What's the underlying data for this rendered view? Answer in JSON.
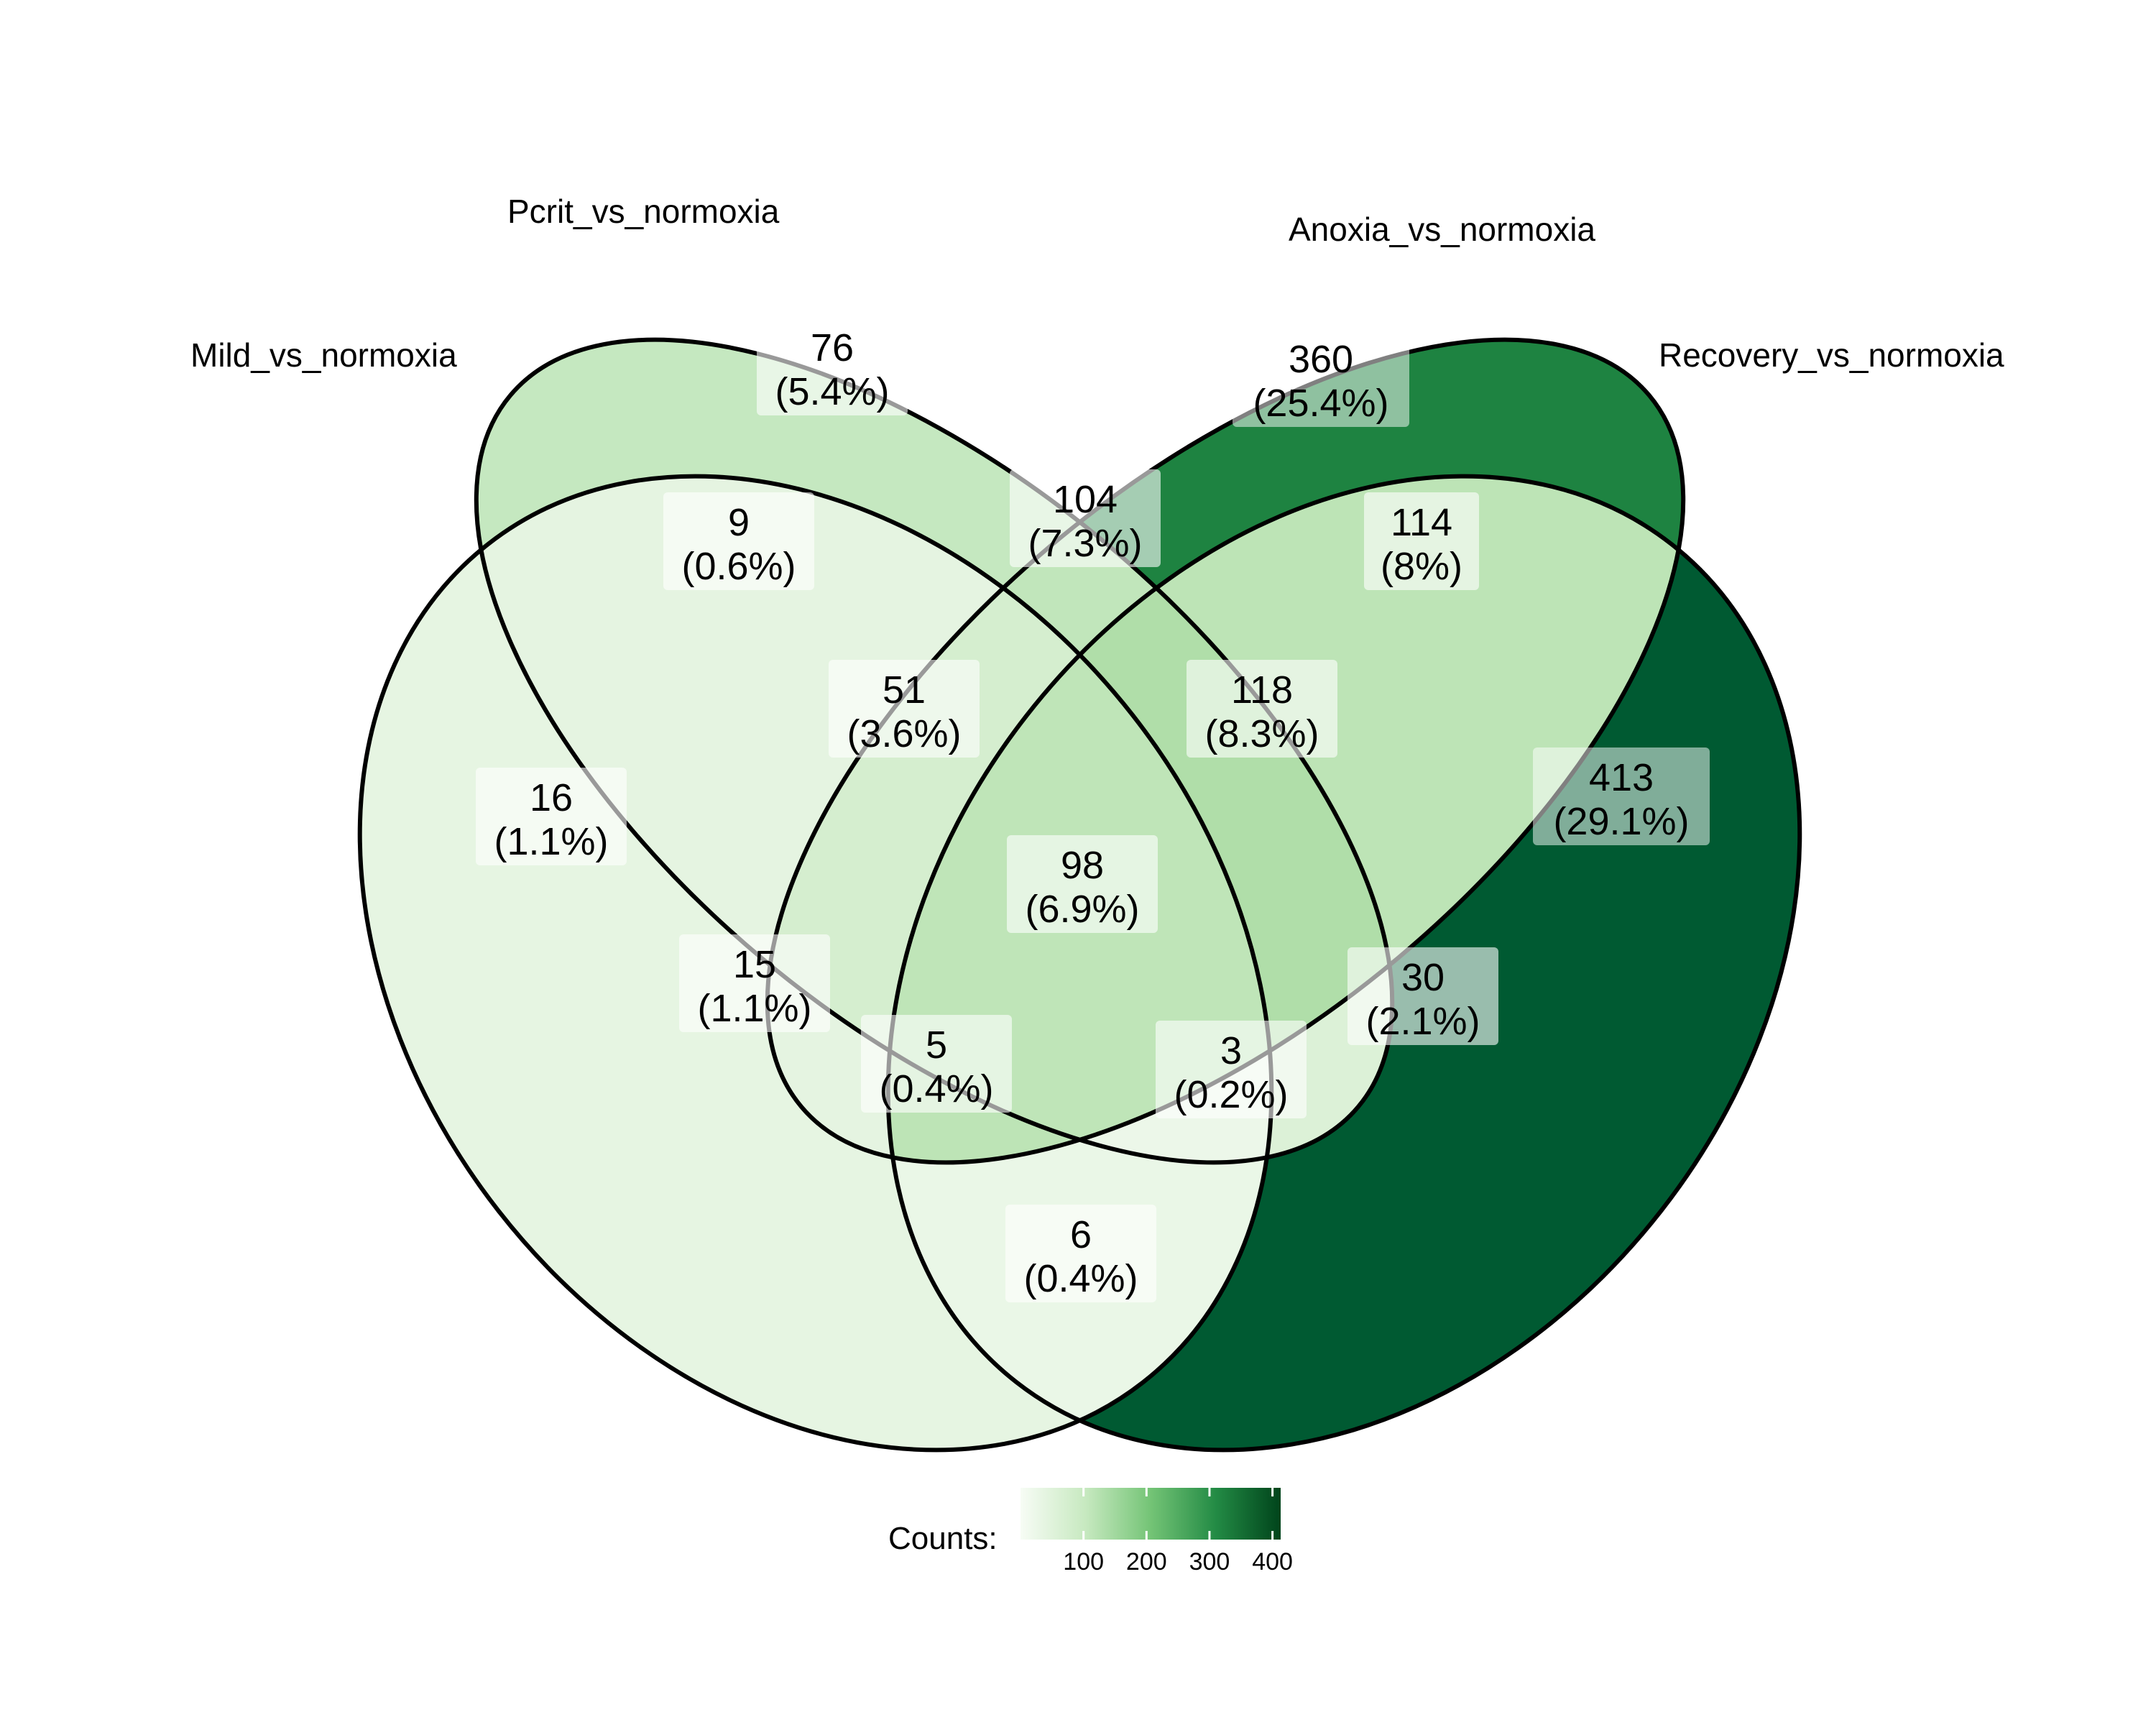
{
  "sets": [
    {
      "id": "mild",
      "label": "Mild_vs_normoxia"
    },
    {
      "id": "pcrit",
      "label": "Pcrit_vs_normoxia"
    },
    {
      "id": "anoxia",
      "label": "Anoxia_vs_normoxia"
    },
    {
      "id": "recovery",
      "label": "Recovery_vs_normoxia"
    }
  ],
  "regions": [
    {
      "id": "pcrit-only",
      "count": "76",
      "percent": "(5.4%)",
      "fill": "#c5e8c0"
    },
    {
      "id": "anoxia-only",
      "count": "360",
      "percent": "(25.4%)",
      "fill": "#1e8341"
    },
    {
      "id": "mild-pcrit",
      "count": "9",
      "percent": "(0.6%)",
      "fill": "#e5f4e1"
    },
    {
      "id": "pcrit-anoxia",
      "count": "104",
      "percent": "(7.3%)",
      "fill": "#c1e6bb"
    },
    {
      "id": "anoxia-recovery",
      "count": "114",
      "percent": "(8%)",
      "fill": "#bde4b6"
    },
    {
      "id": "mild-pcrit-anoxia",
      "count": "51",
      "percent": "(3.6%)",
      "fill": "#d5eecf"
    },
    {
      "id": "pcrit-anoxia-recovery",
      "count": "118",
      "percent": "(8.3%)",
      "fill": "#b0dea9"
    },
    {
      "id": "mild-only",
      "count": "16",
      "percent": "(1.1%)",
      "fill": "#e6f5e2"
    },
    {
      "id": "recovery-only",
      "count": "413",
      "percent": "(29.1%)",
      "fill": "#005a32"
    },
    {
      "id": "all-four",
      "count": "98",
      "percent": "(6.9%)",
      "fill": "#bfe5b8"
    },
    {
      "id": "mild-anoxia",
      "count": "15",
      "percent": "(1.1%)",
      "fill": "#e5f4e1"
    },
    {
      "id": "pcrit-recovery",
      "count": "30",
      "percent": "(2.1%)",
      "fill": "#dcf1d7"
    },
    {
      "id": "mild-anoxia-recovery",
      "count": "5",
      "percent": "(0.4%)",
      "fill": "#eaf7e7"
    },
    {
      "id": "mild-pcrit-recovery",
      "count": "3",
      "percent": "(0.2%)",
      "fill": "#ecf7e9"
    },
    {
      "id": "mild-recovery",
      "count": "6",
      "percent": "(0.4%)",
      "fill": "#eaf7e7"
    }
  ],
  "legend": {
    "title": "Counts:",
    "ticks": [
      "100",
      "200",
      "300",
      "400"
    ],
    "tick_values": [
      100,
      200,
      300,
      400
    ],
    "range": [
      0,
      413
    ],
    "colors": [
      "#f7fcf5",
      "#c7e9c0",
      "#74c476",
      "#238b45",
      "#00441b"
    ]
  }
}
